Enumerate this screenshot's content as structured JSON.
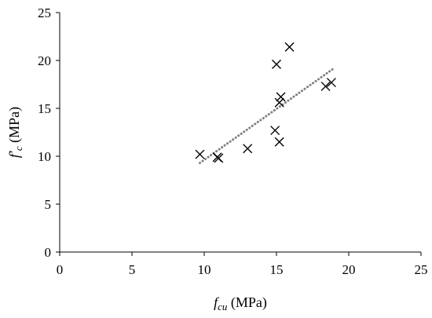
{
  "chart_data": {
    "type": "scatter",
    "xlabel": {
      "symbol": "f",
      "sub": "cu",
      "unit": " (MPa)"
    },
    "ylabel": {
      "symbol": "f′",
      "sub": "c",
      "unit": " (MPa)"
    },
    "xlim": [
      0,
      25
    ],
    "ylim": [
      0,
      25
    ],
    "xticks": [
      0,
      5,
      10,
      15,
      20,
      25
    ],
    "yticks": [
      0,
      5,
      10,
      15,
      20,
      25
    ],
    "grid": false,
    "legend": "none",
    "marker": "x",
    "marker_color": "#000000",
    "trendline": {
      "style": "dotted",
      "color": "#808080",
      "x": [
        9.7,
        18.9
      ],
      "y": [
        9.3,
        19.1
      ]
    },
    "points": [
      {
        "x": 9.7,
        "y": 10.2
      },
      {
        "x": 10.9,
        "y": 9.9
      },
      {
        "x": 11.0,
        "y": 9.8
      },
      {
        "x": 13.0,
        "y": 10.8
      },
      {
        "x": 14.9,
        "y": 12.7
      },
      {
        "x": 15.0,
        "y": 19.6
      },
      {
        "x": 15.2,
        "y": 11.5
      },
      {
        "x": 15.2,
        "y": 15.6
      },
      {
        "x": 15.3,
        "y": 16.2
      },
      {
        "x": 15.9,
        "y": 21.4
      },
      {
        "x": 18.4,
        "y": 17.3
      },
      {
        "x": 18.8,
        "y": 17.7
      }
    ]
  }
}
